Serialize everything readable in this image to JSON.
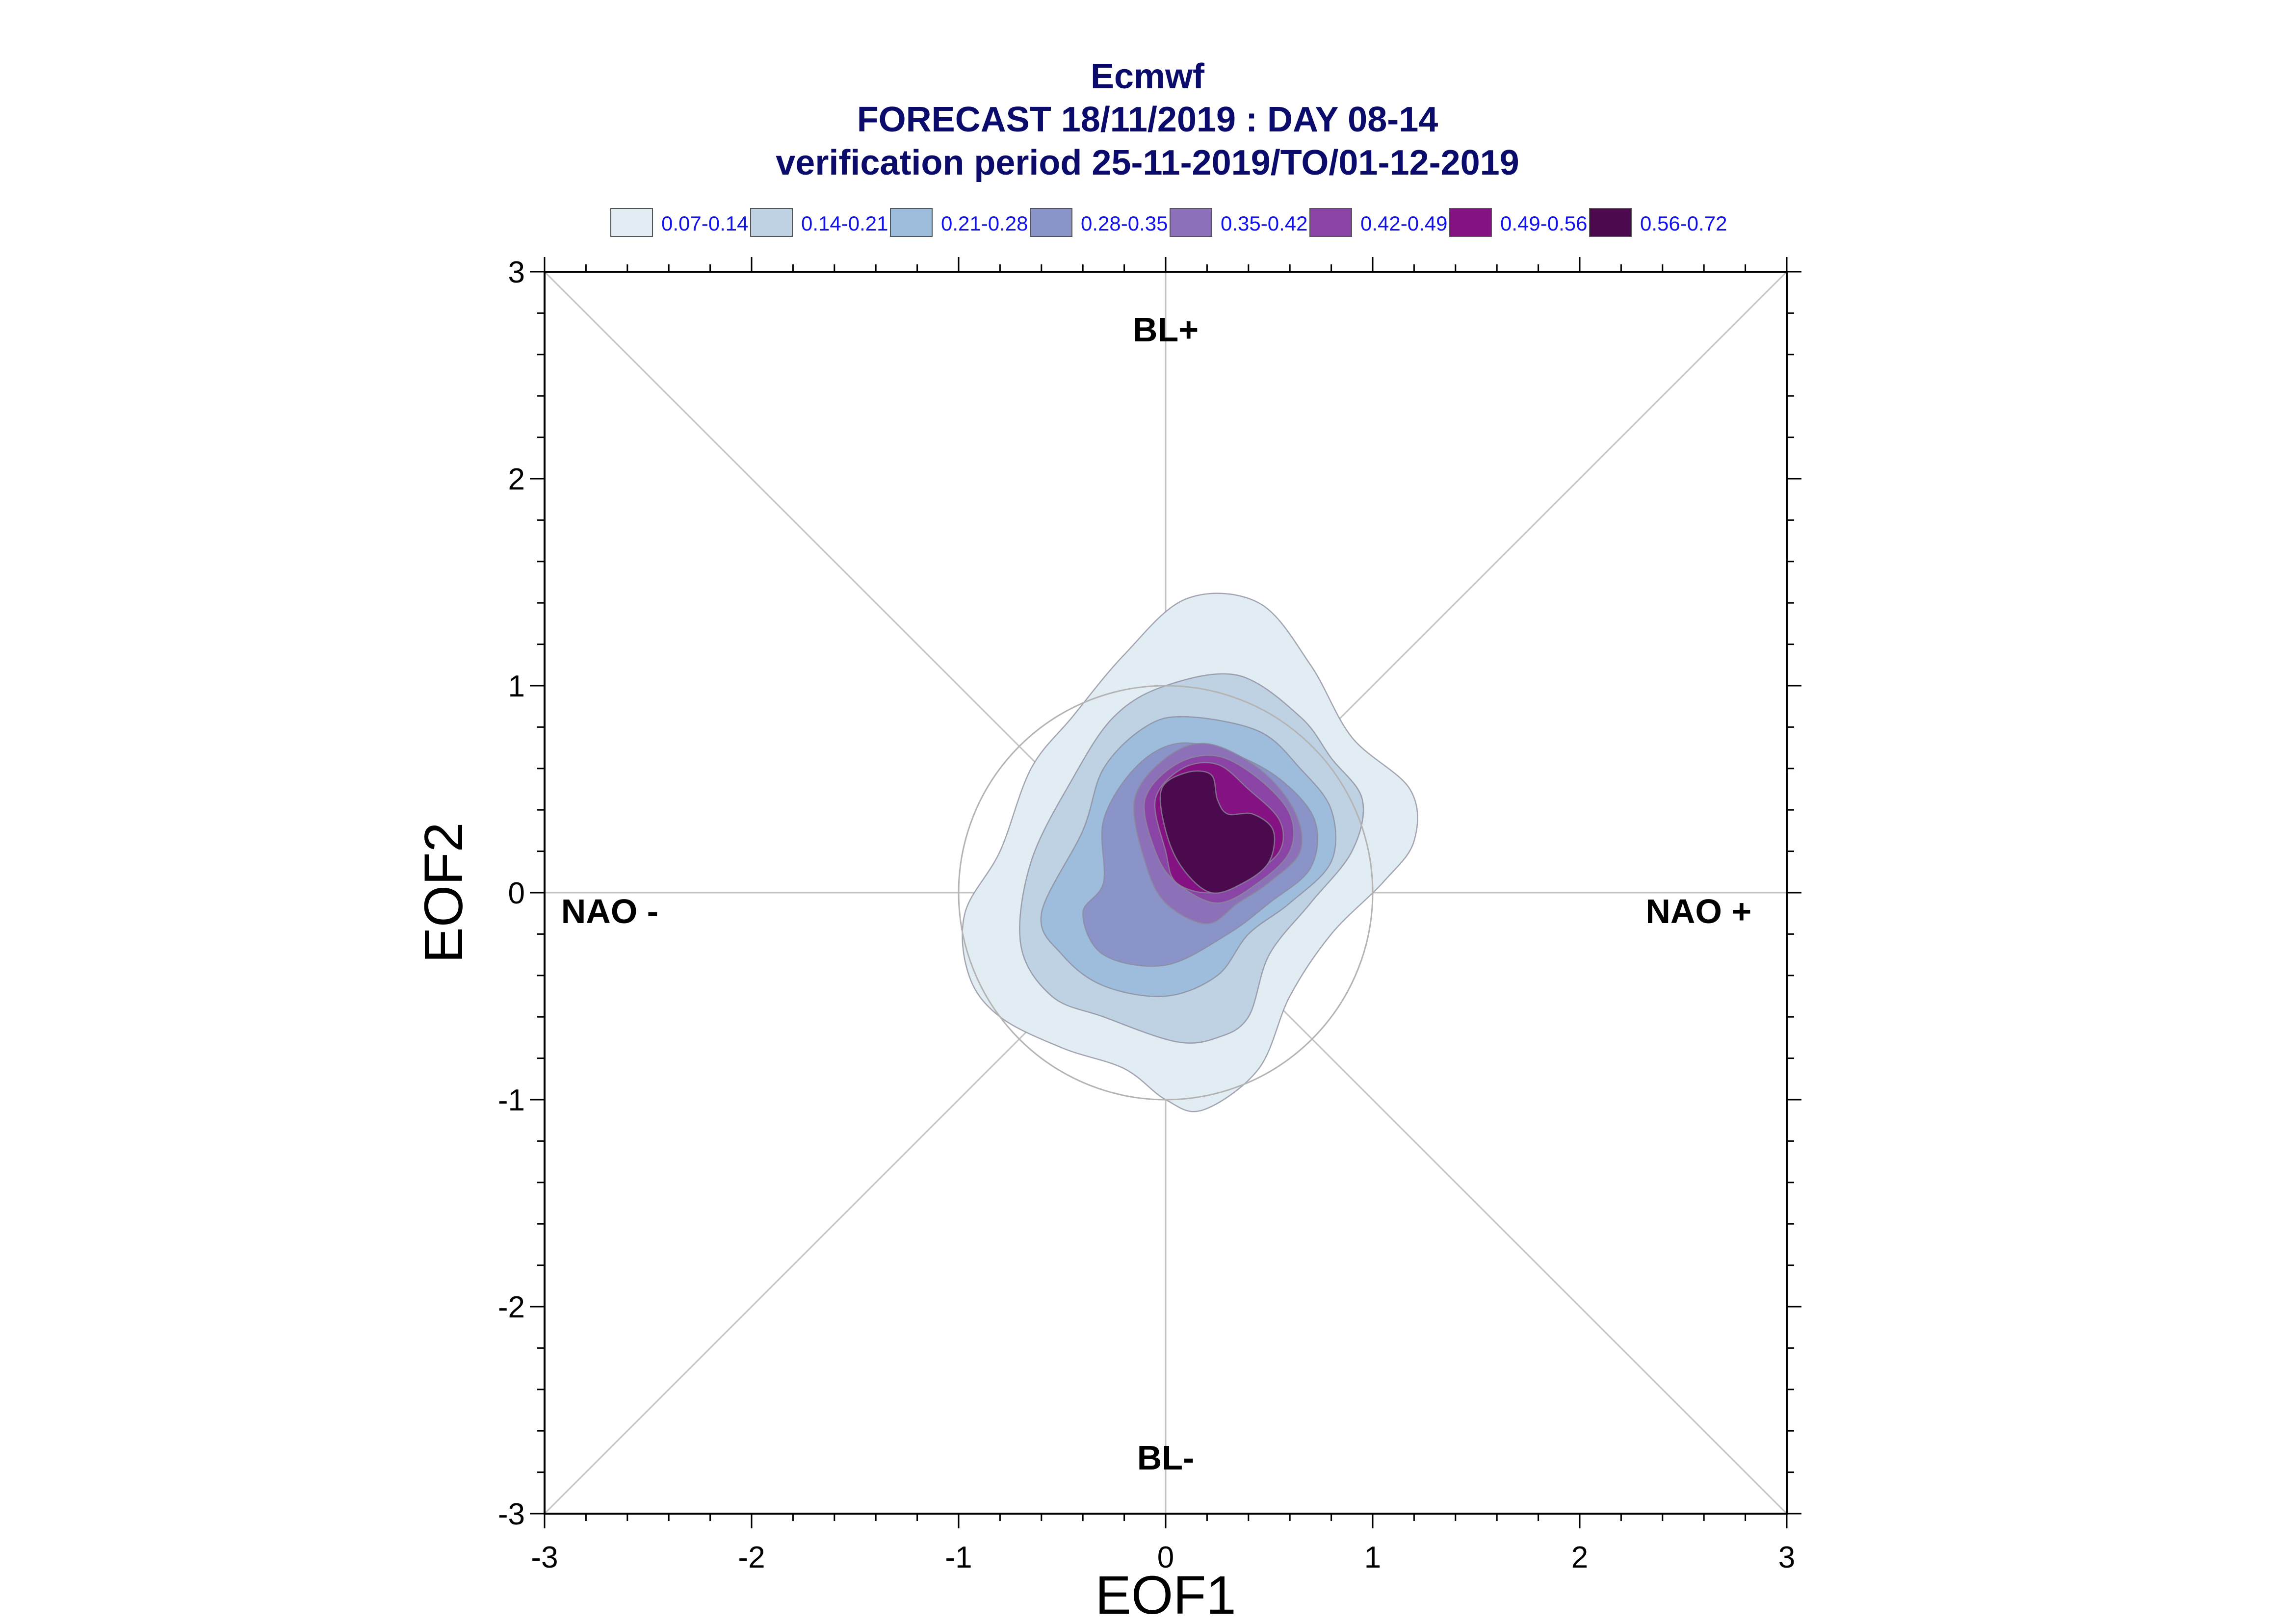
{
  "chart_data": {
    "type": "contour",
    "title_lines": [
      "Ecmwf",
      "FORECAST 18/11/2019 : DAY 08-14",
      "verification period 25-11-2019/TO/01-12-2019"
    ],
    "xlabel": "EOF1",
    "ylabel": "EOF2",
    "xlim": [
      -3,
      3
    ],
    "ylim": [
      -3,
      3
    ],
    "xticks": [
      -3,
      -2,
      -1,
      0,
      1,
      2,
      3
    ],
    "yticks": [
      -3,
      -2,
      -1,
      0,
      1,
      2,
      3
    ],
    "xtick_labels": [
      "-3",
      "-2",
      "-1",
      "0",
      "1",
      "2",
      "3"
    ],
    "ytick_labels": [
      "-3",
      "-2",
      "-1",
      "0",
      "1",
      "2",
      "3"
    ],
    "legend": [
      {
        "label": "0.07-0.14",
        "color": "#e2ecf3"
      },
      {
        "label": "0.14-0.21",
        "color": "#bfd2e3"
      },
      {
        "label": "0.21-0.28",
        "color": "#9ebcdb"
      },
      {
        "label": "0.28-0.35",
        "color": "#8b94c9"
      },
      {
        "label": "0.35-0.42",
        "color": "#8c70b8"
      },
      {
        "label": "0.42-0.49",
        "color": "#8a44a5"
      },
      {
        "label": "0.49-0.56",
        "color": "#851282"
      },
      {
        "label": "0.56-0.72",
        "color": "#4b0a4d"
      }
    ],
    "regime_labels": {
      "top": "BL+",
      "bottom": "BL-",
      "left": "NAO -",
      "right": "NAO +"
    },
    "reference_circle_radius": 1,
    "contours": [
      {
        "level": "0.07-0.14",
        "color": "#e2ecf3",
        "points": [
          [
            -0.95,
            -0.4
          ],
          [
            -0.97,
            -0.1
          ],
          [
            -0.8,
            0.2
          ],
          [
            -0.65,
            0.6
          ],
          [
            -0.45,
            0.85
          ],
          [
            -0.2,
            1.15
          ],
          [
            0.1,
            1.42
          ],
          [
            0.45,
            1.4
          ],
          [
            0.7,
            1.1
          ],
          [
            0.9,
            0.75
          ],
          [
            1.18,
            0.5
          ],
          [
            1.2,
            0.25
          ],
          [
            1.05,
            0.05
          ],
          [
            0.8,
            -0.2
          ],
          [
            0.6,
            -0.5
          ],
          [
            0.45,
            -0.85
          ],
          [
            0.18,
            -1.05
          ],
          [
            0.0,
            -1.0
          ],
          [
            -0.2,
            -0.85
          ],
          [
            -0.5,
            -0.75
          ],
          [
            -0.8,
            -0.6
          ]
        ]
      },
      {
        "level": "0.14-0.21",
        "color": "#bfd2e3",
        "points": [
          [
            -0.7,
            -0.25
          ],
          [
            -0.65,
            0.15
          ],
          [
            -0.45,
            0.55
          ],
          [
            -0.25,
            0.85
          ],
          [
            0.0,
            1.0
          ],
          [
            0.35,
            1.05
          ],
          [
            0.65,
            0.85
          ],
          [
            0.8,
            0.65
          ],
          [
            0.95,
            0.45
          ],
          [
            0.9,
            0.2
          ],
          [
            0.7,
            -0.05
          ],
          [
            0.5,
            -0.3
          ],
          [
            0.4,
            -0.6
          ],
          [
            0.25,
            -0.7
          ],
          [
            0.05,
            -0.72
          ],
          [
            -0.3,
            -0.6
          ],
          [
            -0.55,
            -0.5
          ]
        ]
      },
      {
        "level": "0.21-0.28",
        "color": "#9ebcdb",
        "points": [
          [
            -0.6,
            -0.1
          ],
          [
            -0.4,
            0.3
          ],
          [
            -0.3,
            0.6
          ],
          [
            -0.1,
            0.8
          ],
          [
            0.1,
            0.85
          ],
          [
            0.45,
            0.78
          ],
          [
            0.65,
            0.6
          ],
          [
            0.8,
            0.4
          ],
          [
            0.8,
            0.15
          ],
          [
            0.6,
            -0.05
          ],
          [
            0.4,
            -0.2
          ],
          [
            0.25,
            -0.4
          ],
          [
            0.0,
            -0.5
          ],
          [
            -0.3,
            -0.45
          ],
          [
            -0.5,
            -0.3
          ]
        ]
      },
      {
        "level": "0.28-0.35",
        "color": "#8b94c9",
        "points": [
          [
            -0.4,
            -0.1
          ],
          [
            -0.3,
            0.05
          ],
          [
            -0.3,
            0.35
          ],
          [
            -0.15,
            0.6
          ],
          [
            0.05,
            0.72
          ],
          [
            0.3,
            0.68
          ],
          [
            0.55,
            0.55
          ],
          [
            0.72,
            0.35
          ],
          [
            0.7,
            0.12
          ],
          [
            0.5,
            -0.05
          ],
          [
            0.3,
            -0.2
          ],
          [
            0.0,
            -0.35
          ],
          [
            -0.3,
            -0.3
          ]
        ]
      },
      {
        "level": "0.35-0.42",
        "color": "#8c70b8",
        "points": [
          [
            -0.1,
            0.15
          ],
          [
            -0.15,
            0.45
          ],
          [
            0.0,
            0.65
          ],
          [
            0.2,
            0.72
          ],
          [
            0.45,
            0.6
          ],
          [
            0.62,
            0.4
          ],
          [
            0.65,
            0.2
          ],
          [
            0.5,
            0.05
          ],
          [
            0.35,
            -0.05
          ],
          [
            0.2,
            -0.15
          ],
          [
            0.0,
            -0.05
          ]
        ]
      },
      {
        "level": "0.42-0.49",
        "color": "#8a44a5",
        "points": [
          [
            -0.05,
            0.2
          ],
          [
            -0.1,
            0.45
          ],
          [
            0.05,
            0.62
          ],
          [
            0.25,
            0.66
          ],
          [
            0.45,
            0.55
          ],
          [
            0.6,
            0.38
          ],
          [
            0.6,
            0.2
          ],
          [
            0.45,
            0.05
          ],
          [
            0.25,
            -0.05
          ],
          [
            0.05,
            0.05
          ]
        ]
      },
      {
        "level": "0.49-0.56",
        "color": "#851282",
        "points": [
          [
            0.0,
            0.2
          ],
          [
            -0.05,
            0.45
          ],
          [
            0.08,
            0.6
          ],
          [
            0.25,
            0.62
          ],
          [
            0.4,
            0.5
          ],
          [
            0.55,
            0.35
          ],
          [
            0.55,
            0.2
          ],
          [
            0.4,
            0.08
          ],
          [
            0.22,
            0.0
          ],
          [
            0.05,
            0.05
          ]
        ]
      },
      {
        "level": "0.56-0.72",
        "color": "#4b0a4d",
        "points": [
          [
            0.0,
            0.3
          ],
          [
            -0.02,
            0.5
          ],
          [
            0.1,
            0.58
          ],
          [
            0.22,
            0.57
          ],
          [
            0.25,
            0.45
          ],
          [
            0.3,
            0.38
          ],
          [
            0.42,
            0.38
          ],
          [
            0.52,
            0.3
          ],
          [
            0.5,
            0.15
          ],
          [
            0.38,
            0.05
          ],
          [
            0.22,
            0.0
          ],
          [
            0.08,
            0.12
          ]
        ]
      }
    ]
  }
}
